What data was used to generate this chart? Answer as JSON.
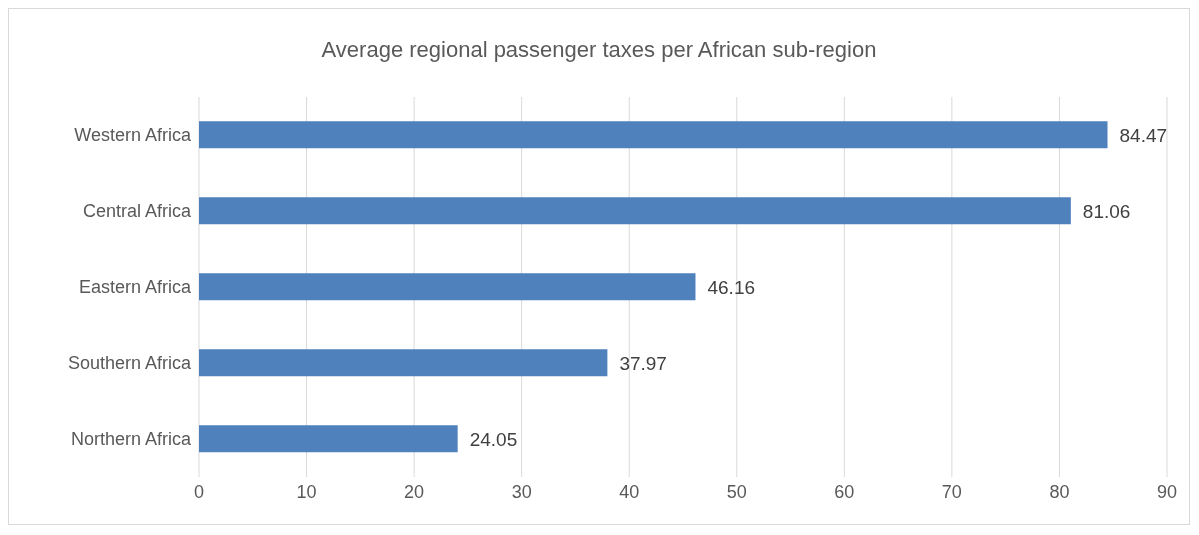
{
  "chart_data": {
    "type": "bar",
    "orientation": "horizontal",
    "title": "Average regional passenger taxes per African sub-region",
    "categories": [
      "Western Africa",
      "Central Africa",
      "Eastern Africa",
      "Southern Africa",
      "Northern Africa"
    ],
    "values": [
      84.47,
      81.06,
      46.16,
      37.97,
      24.05
    ],
    "color": "#4f81bd",
    "xlim": [
      0,
      90
    ],
    "xticks": [
      0,
      10,
      20,
      30,
      40,
      50,
      60,
      70,
      80,
      90
    ],
    "grid": "x",
    "data_labels": true
  }
}
